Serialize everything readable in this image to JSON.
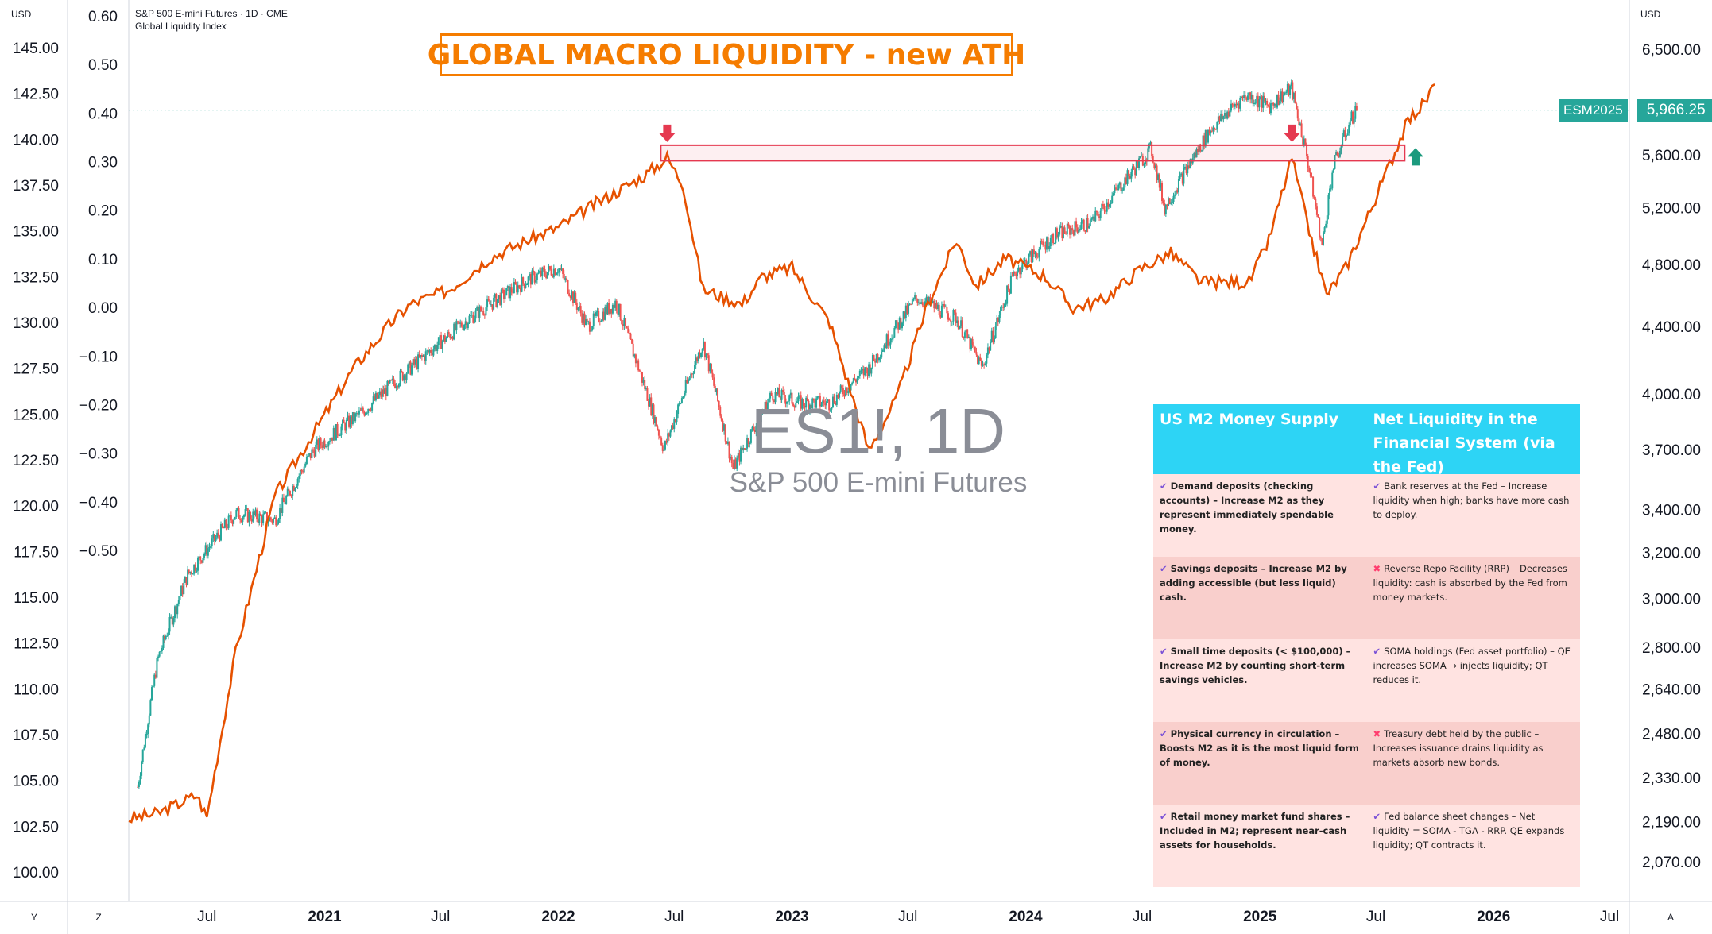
{
  "header": {
    "symbol_line": "S&P 500 E-mini Futures · 1D · CME",
    "indicator_line": "Global Liquidity Index",
    "currency_left": "USD",
    "currency_right": "USD"
  },
  "annotation": {
    "title": "GLOBAL MACRO LIQUIDITY - new ATH"
  },
  "watermark": {
    "symbol": "ES1!, 1D",
    "name": "S&P 500 E-mini Futures"
  },
  "price_label": {
    "symbol": "ESM2025",
    "price": "5,966.25"
  },
  "corner_buttons": {
    "y": "Y",
    "z": "Z",
    "a": "A"
  },
  "colors": {
    "liquidity": "#e65100",
    "candle_up": "#26a69a",
    "candle_down": "#ef5350",
    "box": "#e53950",
    "arrow_down": "#e53950",
    "arrow_up": "#1b9a7d",
    "table_header": "#2dd4f5"
  },
  "table": {
    "headers": [
      "US M2 Money Supply",
      "Net Liquidity in the Financial System (via the Fed)"
    ],
    "rows": [
      {
        "left": "Demand deposits (checking accounts) – Increase M2 as they represent immediately spendable money.",
        "left_icon": "✔",
        "right": "Bank reserves at the Fed – Increase liquidity when high; banks have more cash to deploy.",
        "right_icon": "✔"
      },
      {
        "left": "Savings deposits – Increase M2 by adding accessible (but less liquid) cash.",
        "left_icon": "✔",
        "right": "Reverse Repo Facility (RRP) – Decreases liquidity: cash is absorbed by the Fed from money markets.",
        "right_icon": "✖"
      },
      {
        "left": "Small time deposits (< $100,000) – Increase M2 by counting short-term savings vehicles.",
        "left_icon": "✔",
        "right": "SOMA holdings (Fed asset portfolio) – QE increases SOMA → injects liquidity; QT reduces it.",
        "right_icon": "✔"
      },
      {
        "left": "Physical currency in circulation – Boosts M2 as it is the most liquid form of money.",
        "left_icon": "✔",
        "right": "Treasury debt held by the public – Increases issuance drains liquidity as markets absorb new bonds.",
        "right_icon": "✖"
      },
      {
        "left": "Retail money market fund shares – Included in M2; represent near-cash assets for households.",
        "left_icon": "✔",
        "right": "Fed balance sheet changes – Net liquidity = SOMA - TGA - RRP. QE expands liquidity; QT contracts it.",
        "right_icon": "✔"
      }
    ]
  },
  "chart_data": {
    "type": "line",
    "title": "",
    "x_axis": {
      "ticks": [
        "Jul",
        "2021",
        "Jul",
        "2022",
        "Jul",
        "2023",
        "Jul",
        "2024",
        "Jul",
        "2025",
        "Jul",
        "2026",
        "Jul"
      ],
      "start": "2020-03-01",
      "end": "2026-08-01"
    },
    "left_axis_outer": {
      "ticks": [
        "145.00",
        "142.50",
        "140.00",
        "137.50",
        "135.00",
        "132.50",
        "130.00",
        "127.50",
        "125.00",
        "122.50",
        "120.00",
        "117.50",
        "115.00",
        "112.50",
        "110.00",
        "107.50",
        "105.00",
        "102.50",
        "100.00"
      ],
      "range": [
        100,
        145
      ]
    },
    "left_axis_inner": {
      "ticks": [
        "0.60",
        "0.50",
        "0.40",
        "0.30",
        "0.20",
        "0.10",
        "0.00",
        "−0.10",
        "−0.20",
        "−0.30",
        "−0.40",
        "−0.50"
      ],
      "range": [
        -0.5,
        0.6
      ]
    },
    "right_axis": {
      "ticks": [
        "6,500.00",
        "5,966.25",
        "5,600.00",
        "5,200.00",
        "4,800.00",
        "4,400.00",
        "4,000.00",
        "3,700.00",
        "3,400.00",
        "3,200.00",
        "3,000.00",
        "2,800.00",
        "2,640.00",
        "2,480.00",
        "2,330.00",
        "2,190.00",
        "2,070.00"
      ],
      "scale": "log"
    },
    "series": [
      {
        "type": "line",
        "x": [
          "2020-03-01",
          "2020-04-15",
          "2020-06-15",
          "2020-07-01",
          "2020-08-15",
          "2020-10-15",
          "2020-12-15",
          "2021-02-15",
          "2021-04-15",
          "2021-05-15",
          "2021-07-15",
          "2021-09-15",
          "2021-11-15",
          "2022-01-01",
          "2022-03-01",
          "2022-05-15",
          "2022-06-20",
          "2022-07-15",
          "2022-08-15",
          "2022-10-15",
          "2022-11-15",
          "2023-01-01",
          "2023-03-01",
          "2023-05-01",
          "2023-06-15",
          "2023-08-01",
          "2023-09-15",
          "2023-10-15",
          "2023-12-01",
          "2024-02-01",
          "2024-03-15",
          "2024-05-01",
          "2024-07-01",
          "2024-08-15",
          "2024-10-01",
          "2024-12-15",
          "2025-01-15",
          "2025-02-20",
          "2025-03-15",
          "2025-04-15",
          "2025-05-15",
          "2025-06-15",
          "2025-07-15",
          "2025-08-20",
          "2025-09-15",
          "2025-10-01"
        ],
        "y": [
          102.9,
          103.2,
          104.2,
          103.0,
          112.0,
          120.5,
          124.0,
          127.5,
          130.0,
          131.0,
          131.8,
          133.5,
          134.5,
          135.2,
          136.5,
          138.0,
          139.0,
          137.5,
          131.8,
          131.0,
          132.5,
          133.0,
          130.0,
          123.0,
          126.0,
          131.0,
          134.5,
          132.0,
          133.5,
          132.5,
          130.8,
          131.2,
          133.0,
          133.8,
          132.2,
          132.2,
          134.5,
          139.0,
          135.5,
          131.5,
          133.0,
          135.5,
          138.0,
          141.0,
          142.0,
          143.0
        ]
      },
      {
        "type": "candlestick",
        "x": [
          "2020-03-15",
          "2020-04-15",
          "2020-06-01",
          "2020-08-15",
          "2020-10-15",
          "2020-12-15",
          "2021-03-01",
          "2021-05-15",
          "2021-08-15",
          "2021-11-15",
          "2022-01-01",
          "2022-02-15",
          "2022-04-01",
          "2022-06-15",
          "2022-08-15",
          "2022-10-01",
          "2022-12-01",
          "2023-01-15",
          "2023-03-01",
          "2023-05-01",
          "2023-07-15",
          "2023-09-15",
          "2023-10-25",
          "2023-12-15",
          "2024-02-15",
          "2024-04-15",
          "2024-07-15",
          "2024-08-05",
          "2024-10-15",
          "2024-12-10",
          "2025-01-15",
          "2025-02-19",
          "2025-03-15",
          "2025-04-08",
          "2025-04-25",
          "2025-05-20",
          "2025-06-01"
        ],
        "y": [
          2300,
          2750,
          3100,
          3380,
          3350,
          3700,
          3900,
          4150,
          4450,
          4700,
          4780,
          4400,
          4550,
          3700,
          4300,
          3600,
          4000,
          3950,
          3950,
          4150,
          4580,
          4450,
          4150,
          4750,
          5000,
          5100,
          5650,
          5200,
          5800,
          6100,
          6000,
          6150,
          5600,
          4920,
          5500,
          5850,
          5980
        ]
      }
    ],
    "highlight_box": {
      "x_start": "2022-06-10",
      "x_end": "2025-08-15",
      "y_low": 139.0,
      "y_high": 139.5
    },
    "annotations": [
      {
        "type": "arrow_down",
        "x": "2022-06-20"
      },
      {
        "type": "arrow_down",
        "x": "2025-02-20"
      },
      {
        "type": "arrow_up",
        "x": "2025-09-01"
      }
    ],
    "last_price": 5966.25
  }
}
